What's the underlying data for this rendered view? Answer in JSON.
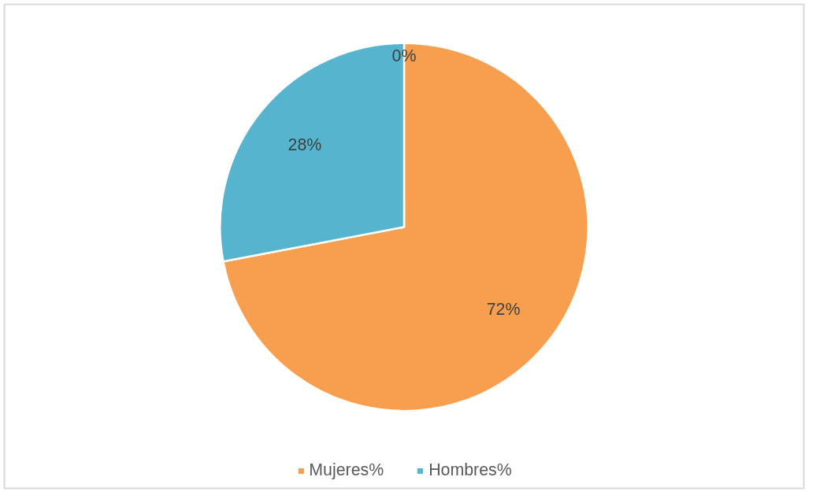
{
  "chart_data": {
    "type": "pie",
    "categories": [
      "Mujeres%",
      "Hombres%",
      null
    ],
    "values": [
      72,
      28,
      0
    ],
    "colors": [
      "#f79f4f",
      "#56b4ce",
      "#a5a5a5"
    ],
    "value_labels": [
      "72%",
      "28%",
      "0%"
    ],
    "legend": "bottom"
  }
}
